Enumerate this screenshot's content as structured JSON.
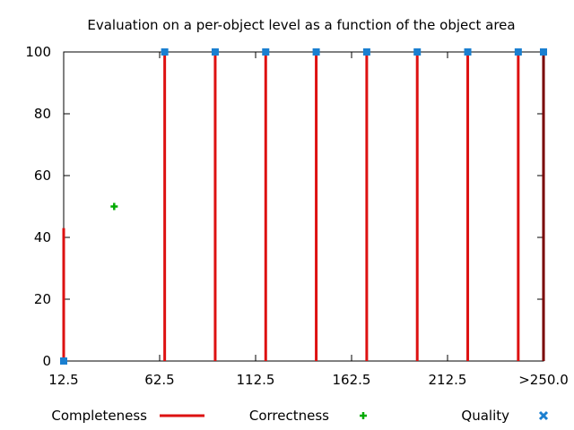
{
  "chart_data": {
    "type": "line",
    "title": "Evaluation on a per-object level as a function of the object area",
    "xlabel": "",
    "ylabel": "",
    "x_ticks": [
      "12.5",
      "62.5",
      "112.5",
      "162.5",
      "212.5",
      ">250.0"
    ],
    "y_ticks": [
      0,
      20,
      40,
      60,
      80,
      100
    ],
    "ylim": [
      0,
      100
    ],
    "xlim": [
      12.5,
      250
    ],
    "grid": false,
    "legend_position": "bottom",
    "series": [
      {
        "name": "Completeness",
        "style": "impulses",
        "color": "#dd1111",
        "x": [
          12.5,
          62.5,
          87.5,
          112.5,
          137.5,
          162.5,
          187.5,
          212.5,
          237.5,
          250
        ],
        "y": [
          43,
          100,
          100,
          100,
          100,
          100,
          100,
          100,
          100,
          100
        ]
      },
      {
        "name": "Correctness",
        "style": "points-plus",
        "color": "#00aa00",
        "x": [
          37.5
        ],
        "y": [
          50
        ]
      },
      {
        "name": "Quality",
        "style": "points-square",
        "color": "#1a7fd0",
        "x": [
          12.5,
          62.5,
          87.5,
          112.5,
          137.5,
          162.5,
          187.5,
          212.5,
          237.5,
          250
        ],
        "y": [
          0,
          100,
          100,
          100,
          100,
          100,
          100,
          100,
          100,
          100
        ]
      }
    ]
  }
}
